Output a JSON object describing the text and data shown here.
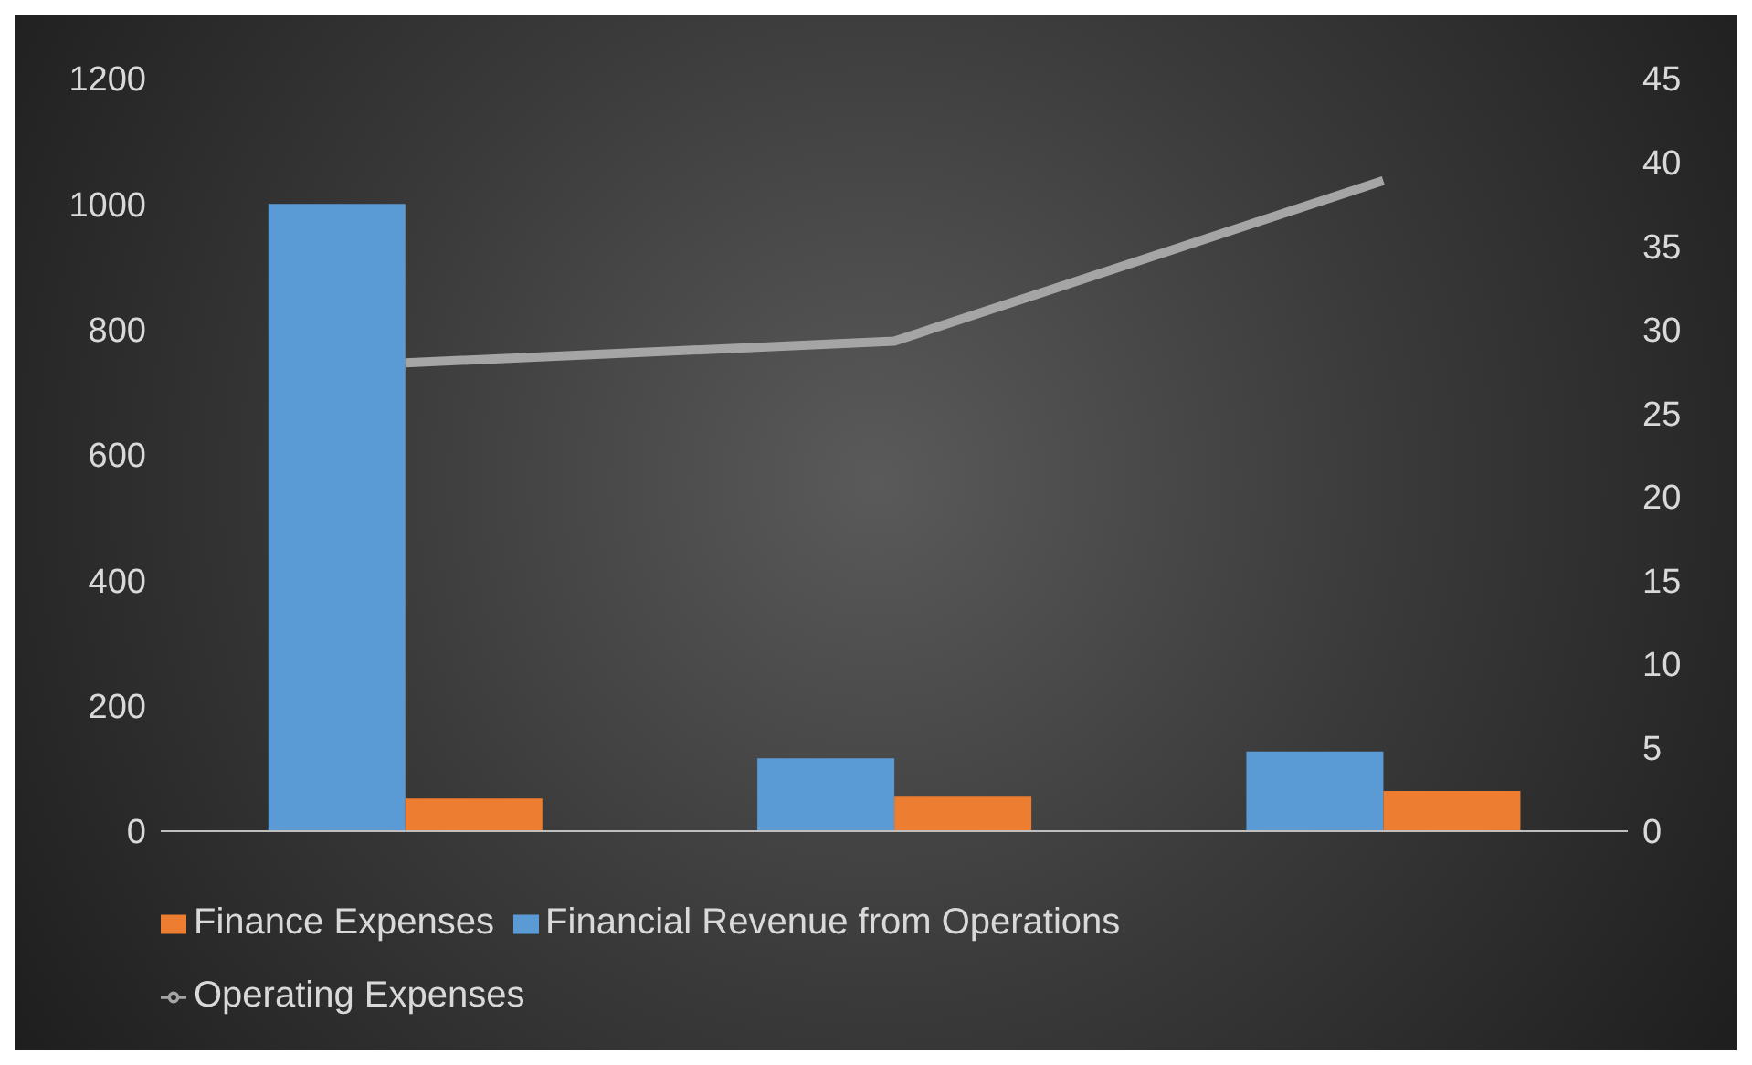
{
  "chart_data": {
    "type": "bar",
    "categories": [
      null,
      null,
      null
    ],
    "series": [
      {
        "name": "Financial Revenue from Operations",
        "color": "#5b9bd5",
        "values": [
          1000,
          116,
          127
        ]
      },
      {
        "name": "Finance Expenses",
        "color": "#ed7d31",
        "values": [
          52,
          55,
          64
        ]
      },
      {
        "name": "Operating Expenses",
        "type": "line",
        "axis": "y2",
        "color": "#a5a5a5",
        "values": [
          28,
          29.3,
          38.9
        ]
      }
    ],
    "ylim": [
      0,
      1200
    ],
    "yticks": [
      0,
      200,
      400,
      600,
      800,
      1000,
      1200
    ],
    "y2lim": [
      0,
      45
    ],
    "y2ticks": [
      0,
      5,
      10,
      15,
      20,
      25,
      30,
      35,
      40,
      45
    ],
    "grid": false,
    "legend": "bottom"
  }
}
